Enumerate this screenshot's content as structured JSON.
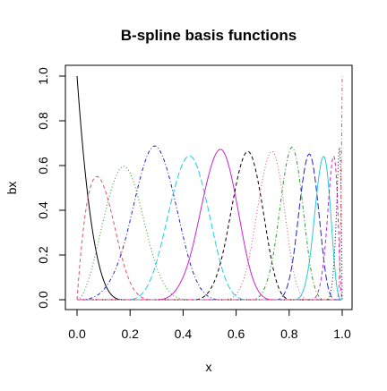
{
  "chart_data": {
    "type": "line",
    "title": "B-spline basis functions",
    "xlabel": "x",
    "ylabel": "bx",
    "xlim": [
      0,
      1
    ],
    "ylim": [
      0,
      1
    ],
    "xticks": [
      "0.0",
      "0.2",
      "0.4",
      "0.6",
      "0.8",
      "1.0"
    ],
    "yticks": [
      "0.0",
      "0.2",
      "0.4",
      "0.6",
      "0.8",
      "1.0"
    ],
    "grid": false,
    "legend": "none",
    "degree": 3,
    "knots": [
      0,
      0,
      0,
      0,
      0.18,
      0.29,
      0.43,
      0.55,
      0.65,
      0.745,
      0.815,
      0.88,
      0.94,
      0.98,
      1,
      1,
      1,
      1
    ],
    "series": [
      {
        "color": "#000000",
        "dash": "solid"
      },
      {
        "color": "#DF536B",
        "dash": "dashed"
      },
      {
        "color": "#22A022",
        "dash": "dotted"
      },
      {
        "color": "#2222CC",
        "dash": "dotdash"
      },
      {
        "color": "#22CCDD",
        "dash": "longdash"
      },
      {
        "color": "#CC22CC",
        "dash": "solid"
      },
      {
        "color": "#000000",
        "dash": "dashed"
      },
      {
        "color": "#DF536B",
        "dash": "dotted"
      },
      {
        "color": "#22A022",
        "dash": "dotdash"
      },
      {
        "color": "#2222CC",
        "dash": "longdash"
      },
      {
        "color": "#22CCDD",
        "dash": "solid"
      },
      {
        "color": "#CC22CC",
        "dash": "dashed"
      },
      {
        "color": "#000000",
        "dash": "dotted"
      },
      {
        "color": "#DF536B",
        "dash": "dotdash"
      }
    ]
  }
}
